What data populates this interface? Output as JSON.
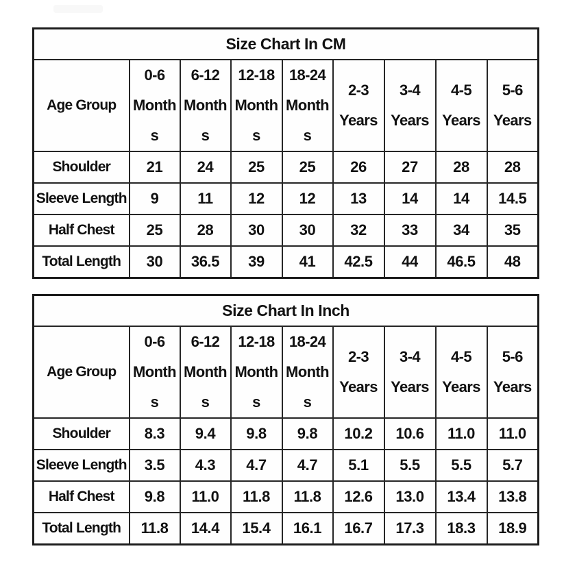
{
  "tables": {
    "cm": {
      "title": "Size Chart In CM",
      "header": {
        "label": "Age Group",
        "columns": [
          {
            "label": "0-6 Months",
            "lines": [
              "0-6",
              "Month",
              "s"
            ]
          },
          {
            "label": "6-12 Months",
            "lines": [
              "6-12",
              "Month",
              "s"
            ]
          },
          {
            "label": "12-18 Months",
            "lines": [
              "12-18",
              "Month",
              "s"
            ]
          },
          {
            "label": "18-24 Months",
            "lines": [
              "18-24",
              "Month",
              "s"
            ]
          },
          {
            "label": "2-3 Years",
            "lines": [
              "2-3",
              "Years"
            ]
          },
          {
            "label": "3-4 Years",
            "lines": [
              "3-4",
              "Years"
            ]
          },
          {
            "label": "4-5 Years",
            "lines": [
              "4-5",
              "Years"
            ]
          },
          {
            "label": "5-6 Years",
            "lines": [
              "5-6",
              "Years"
            ]
          }
        ]
      },
      "rows": [
        {
          "label": "Shoulder",
          "values": [
            "21",
            "24",
            "25",
            "25",
            "26",
            "27",
            "28",
            "28"
          ]
        },
        {
          "label": "Sleeve Length",
          "values": [
            "9",
            "11",
            "12",
            "12",
            "13",
            "14",
            "14",
            "14.5"
          ]
        },
        {
          "label": "Half Chest",
          "values": [
            "25",
            "28",
            "30",
            "30",
            "32",
            "33",
            "34",
            "35"
          ]
        },
        {
          "label": "Total Length",
          "values": [
            "30",
            "36.5",
            "39",
            "41",
            "42.5",
            "44",
            "46.5",
            "48"
          ]
        }
      ]
    },
    "inch": {
      "title": "Size Chart In Inch",
      "header": {
        "label": "Age Group",
        "columns": [
          {
            "label": "0-6 Months",
            "lines": [
              "0-6",
              "Month",
              "s"
            ]
          },
          {
            "label": "6-12 Months",
            "lines": [
              "6-12",
              "Month",
              "s"
            ]
          },
          {
            "label": "12-18 Months",
            "lines": [
              "12-18",
              "Month",
              "s"
            ]
          },
          {
            "label": "18-24 Months",
            "lines": [
              "18-24",
              "Month",
              "s"
            ]
          },
          {
            "label": "2-3 Years",
            "lines": [
              "2-3",
              "Years"
            ]
          },
          {
            "label": "3-4 Years",
            "lines": [
              "3-4",
              "Years"
            ]
          },
          {
            "label": "4-5 Years",
            "lines": [
              "4-5",
              "Years"
            ]
          },
          {
            "label": "5-6 Years",
            "lines": [
              "5-6",
              "Years"
            ]
          }
        ]
      },
      "rows": [
        {
          "label": "Shoulder",
          "values": [
            "8.3",
            "9.4",
            "9.8",
            "9.8",
            "10.2",
            "10.6",
            "11.0",
            "11.0"
          ]
        },
        {
          "label": "Sleeve Length",
          "values": [
            "3.5",
            "4.3",
            "4.7",
            "4.7",
            "5.1",
            "5.5",
            "5.5",
            "5.7"
          ]
        },
        {
          "label": "Half Chest",
          "values": [
            "9.8",
            "11.0",
            "11.8",
            "11.8",
            "12.6",
            "13.0",
            "13.4",
            "13.8"
          ]
        },
        {
          "label": "Total Length",
          "values": [
            "11.8",
            "14.4",
            "15.4",
            "16.1",
            "16.7",
            "17.3",
            "18.3",
            "18.9"
          ]
        }
      ]
    }
  },
  "colors": {
    "text": "#111111",
    "border": "#262626",
    "background": "#ffffff"
  }
}
